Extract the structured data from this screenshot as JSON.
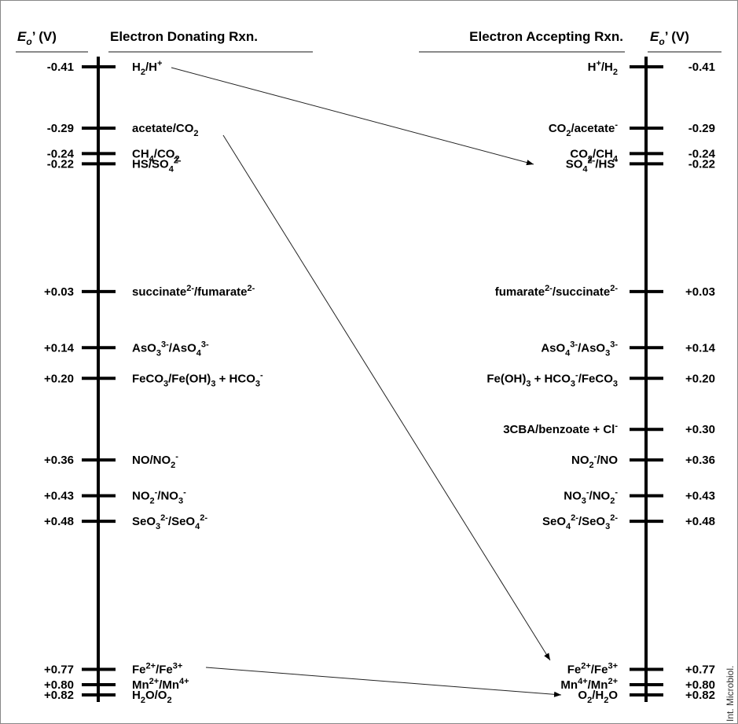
{
  "header": {
    "potential_left": [
      "E",
      "o",
      "’ (V)"
    ],
    "donating": "Electron Donating Rxn.",
    "accepting": "Electron Accepting Rxn.",
    "potential_right": [
      "E",
      "o",
      "’ (V)"
    ]
  },
  "left": [
    {
      "potential": -0.41,
      "label": [
        {
          "t": "H"
        },
        {
          "sub": "2"
        },
        {
          "t": "/H"
        },
        {
          "sup": "+"
        }
      ]
    },
    {
      "potential": -0.29,
      "label": [
        {
          "t": "acetate/CO"
        },
        {
          "sub": "2"
        }
      ]
    },
    {
      "potential": -0.24,
      "label": [
        {
          "t": "CH"
        },
        {
          "sub": "4"
        },
        {
          "t": "/CO"
        },
        {
          "sub": "2"
        }
      ]
    },
    {
      "potential": -0.22,
      "label": [
        {
          "t": "HS/SO"
        },
        {
          "sub": "4"
        },
        {
          "sup": "2-"
        }
      ]
    },
    {
      "potential": {
        "value": 0.03,
        "label": "+0.03"
      },
      "label": [
        {
          "t": "succinate"
        },
        {
          "sup": "2-"
        },
        {
          "t": "/fumarate"
        },
        {
          "sup": "2-"
        }
      ]
    },
    {
      "potential": {
        "value": 0.14,
        "label": "+0.14"
      },
      "label": [
        {
          "t": "AsO"
        },
        {
          "sub": "3"
        },
        {
          "sup": "3-"
        },
        {
          "t": "/AsO"
        },
        {
          "sub": "4"
        },
        {
          "sup": "3-"
        }
      ]
    },
    {
      "potential": {
        "value": 0.2,
        "label": "+0.20"
      },
      "label": [
        {
          "t": "FeCO"
        },
        {
          "sub": "3"
        },
        {
          "t": "/Fe(OH)"
        },
        {
          "sub": "3"
        },
        {
          "t": " + HCO"
        },
        {
          "sub": "3"
        },
        {
          "sup": "-"
        }
      ]
    },
    {
      "potential": {
        "value": 0.36,
        "label": "+0.36"
      },
      "label": [
        {
          "t": "NO/NO"
        },
        {
          "sub": "2"
        },
        {
          "sup": "-"
        }
      ]
    },
    {
      "potential": {
        "value": 0.43,
        "label": "+0.43"
      },
      "label": [
        {
          "t": "NO"
        },
        {
          "sub": "2"
        },
        {
          "sup": "-"
        },
        {
          "t": "/NO"
        },
        {
          "sub": "3"
        },
        {
          "sup": "-"
        }
      ]
    },
    {
      "potential": {
        "value": 0.48,
        "label": "+0.48"
      },
      "label": [
        {
          "t": "SeO"
        },
        {
          "sub": "3"
        },
        {
          "sup": "2-"
        },
        {
          "t": "/SeO"
        },
        {
          "sub": "4"
        },
        {
          "sup": "2-"
        }
      ]
    },
    {
      "potential": {
        "value": 0.77,
        "label": "+0.77"
      },
      "label": [
        {
          "t": "Fe"
        },
        {
          "sup": "2+"
        },
        {
          "t": "/Fe"
        },
        {
          "sup": "3+"
        }
      ]
    },
    {
      "potential": {
        "value": 0.8,
        "label": "+0.80"
      },
      "label": [
        {
          "t": "Mn"
        },
        {
          "sup": "2+"
        },
        {
          "t": "/Mn"
        },
        {
          "sup": "4+"
        }
      ]
    },
    {
      "potential": {
        "value": 0.82,
        "label": "+0.82"
      },
      "label": [
        {
          "t": "H"
        },
        {
          "sub": "2"
        },
        {
          "t": "O/O"
        },
        {
          "sub": "2"
        }
      ]
    }
  ],
  "right": [
    {
      "potential": -0.41,
      "label": [
        {
          "t": "H"
        },
        {
          "sup": "+"
        },
        {
          "t": "/H"
        },
        {
          "sub": "2"
        }
      ]
    },
    {
      "potential": -0.29,
      "label": [
        {
          "t": "CO"
        },
        {
          "sub": "2"
        },
        {
          "t": "/acetate"
        },
        {
          "sup": "-"
        }
      ]
    },
    {
      "potential": -0.24,
      "label": [
        {
          "t": "CO"
        },
        {
          "sub": "2"
        },
        {
          "t": "/CH"
        },
        {
          "sub": "4"
        }
      ]
    },
    {
      "potential": -0.22,
      "label": [
        {
          "t": "SO"
        },
        {
          "sub": "4"
        },
        {
          "sup": "2-"
        },
        {
          "t": "/HS"
        },
        {
          "sup": "-"
        }
      ]
    },
    {
      "potential": {
        "value": 0.03,
        "label": "+0.03"
      },
      "label": [
        {
          "t": "fumarate"
        },
        {
          "sup": "2-"
        },
        {
          "t": "/succinate"
        },
        {
          "sup": "2-"
        }
      ]
    },
    {
      "potential": {
        "value": 0.14,
        "label": "+0.14"
      },
      "label": [
        {
          "t": "AsO"
        },
        {
          "sub": "4"
        },
        {
          "sup": "3-"
        },
        {
          "t": "/AsO"
        },
        {
          "sub": "3"
        },
        {
          "sup": "3-"
        }
      ]
    },
    {
      "potential": {
        "value": 0.2,
        "label": "+0.20"
      },
      "label": [
        {
          "t": "Fe(OH)"
        },
        {
          "sub": "3"
        },
        {
          "t": " + HCO"
        },
        {
          "sub": "3"
        },
        {
          "sup": "-"
        },
        {
          "t": "/FeCO"
        },
        {
          "sub": "3"
        }
      ]
    },
    {
      "potential": {
        "value": 0.3,
        "label": "+0.30"
      },
      "label": [
        {
          "t": "3CBA/benzoate + Cl"
        },
        {
          "sup": "-"
        }
      ]
    },
    {
      "potential": {
        "value": 0.36,
        "label": "+0.36"
      },
      "label": [
        {
          "t": "NO"
        },
        {
          "sub": "2"
        },
        {
          "sup": "-"
        },
        {
          "t": "/NO"
        }
      ]
    },
    {
      "potential": {
        "value": 0.43,
        "label": "+0.43"
      },
      "label": [
        {
          "t": "NO"
        },
        {
          "sub": "3"
        },
        {
          "sup": "-"
        },
        {
          "t": "/NO"
        },
        {
          "sub": "2"
        },
        {
          "sup": "-"
        }
      ]
    },
    {
      "potential": {
        "value": 0.48,
        "label": "+0.48"
      },
      "label": [
        {
          "t": "SeO"
        },
        {
          "sub": "4"
        },
        {
          "sup": "2-"
        },
        {
          "t": "/SeO"
        },
        {
          "sub": "3"
        },
        {
          "sup": "2-"
        }
      ]
    },
    {
      "potential": {
        "value": 0.77,
        "label": "+0.77"
      },
      "label": [
        {
          "t": "Fe"
        },
        {
          "sup": "2+"
        },
        {
          "t": "/Fe"
        },
        {
          "sup": "3+"
        }
      ]
    },
    {
      "potential": {
        "value": 0.8,
        "label": "+0.80"
      },
      "label": [
        {
          "t": "Mn"
        },
        {
          "sup": "4+"
        },
        {
          "t": "/Mn"
        },
        {
          "sup": "2+"
        }
      ]
    },
    {
      "potential": {
        "value": 0.82,
        "label": "+0.82"
      },
      "label": [
        {
          "t": "O"
        },
        {
          "sub": "2"
        },
        {
          "t": "/H"
        },
        {
          "sub": "2"
        },
        {
          "t": "O"
        }
      ]
    }
  ],
  "credit": "Int. Microbiol."
}
